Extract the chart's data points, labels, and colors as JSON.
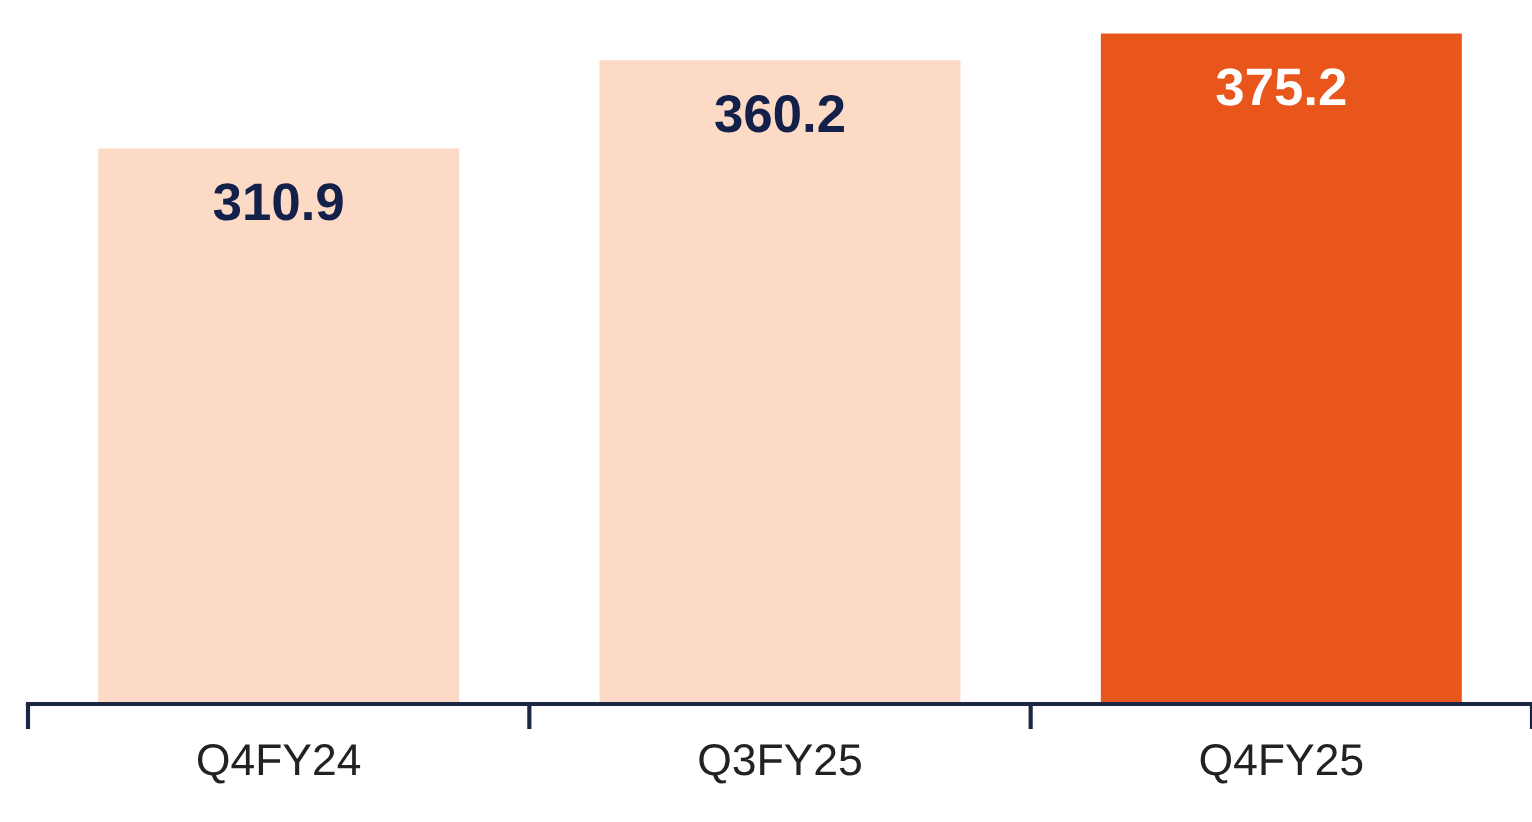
{
  "chart_data": {
    "type": "bar",
    "categories": [
      "Q4FY24",
      "Q3FY25",
      "Q4FY25"
    ],
    "values": [
      310.9,
      360.2,
      375.2
    ],
    "colors": [
      "#fddac6",
      "#fddac6",
      "#e8561c"
    ],
    "tick_labels": "x",
    "data_labels": true,
    "grid": false,
    "legend": false
  }
}
